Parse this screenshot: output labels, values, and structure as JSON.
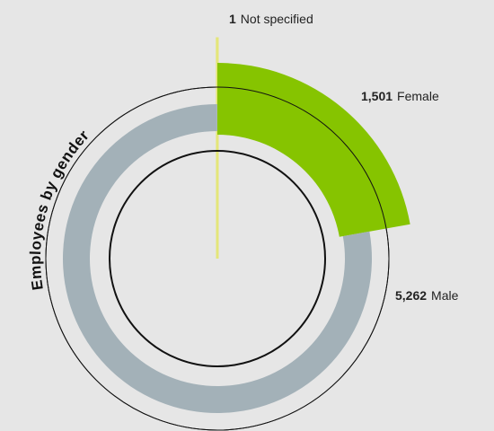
{
  "chart_data": {
    "type": "donut",
    "title": "Employees by gender",
    "categories": [
      "Not specified",
      "Female",
      "Male"
    ],
    "values": [
      1,
      1501,
      5262
    ],
    "value_labels": [
      "1",
      "1,501",
      "5,262"
    ],
    "colors": [
      "#e4e67a",
      "#86c400",
      "#a3b1b8"
    ]
  }
}
